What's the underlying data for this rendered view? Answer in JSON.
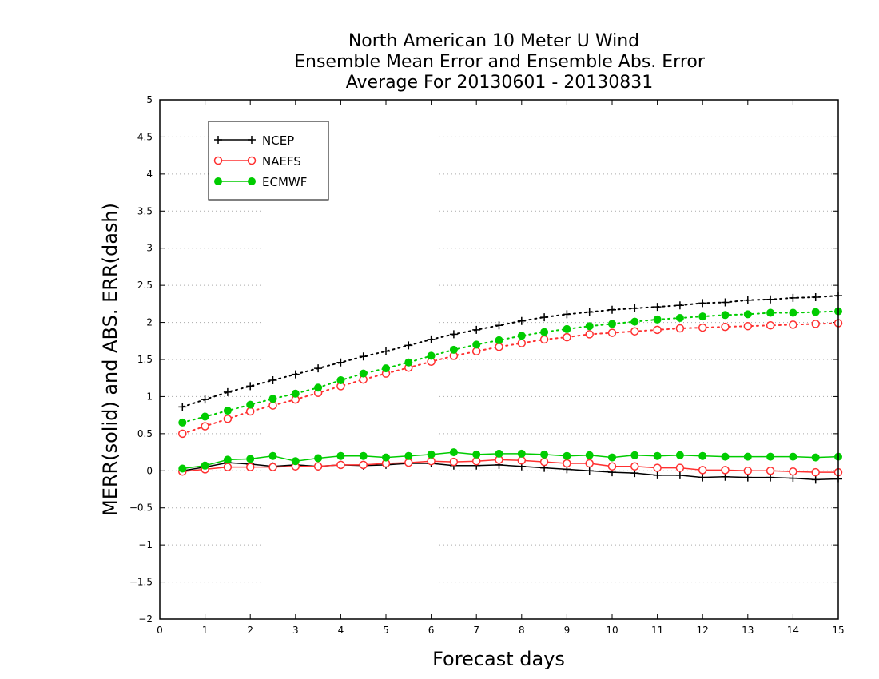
{
  "chart_data": {
    "type": "line",
    "title": [
      "North American 10 Meter U Wind",
      "Ensemble Mean Error and Ensemble Abs. Error",
      "Average For 20130601 - 20130831"
    ],
    "xlabel": "Forecast days",
    "ylabel": "MERR(solid) and ABS. ERR(dash)",
    "xlim": [
      0,
      15
    ],
    "ylim": [
      -2,
      5
    ],
    "x_ticks": [
      "0",
      "1",
      "2",
      "3",
      "4",
      "5",
      "6",
      "7",
      "8",
      "9",
      "10",
      "11",
      "12",
      "13",
      "14",
      "15"
    ],
    "y_ticks": [
      "5",
      "4.5",
      "4",
      "3.5",
      "3",
      "2.5",
      "2",
      "1.5",
      "1",
      "0.5",
      "0",
      "−0.5",
      "−1",
      "−1.5",
      "−2"
    ],
    "grid": "horizontal dotted",
    "legend_position": "top-left",
    "x": [
      0.5,
      1,
      1.5,
      2,
      2.5,
      3,
      3.5,
      4,
      4.5,
      5,
      5.5,
      6,
      6.5,
      7,
      7.5,
      8,
      8.5,
      9,
      9.5,
      10,
      10.5,
      11,
      11.5,
      12,
      12.5,
      13,
      13.5,
      14,
      14.5,
      15
    ],
    "series": [
      {
        "name": "NCEP",
        "color": "#000000",
        "marker": "plus",
        "merr": [
          0.0,
          0.05,
          0.11,
          0.09,
          0.06,
          0.08,
          0.06,
          0.08,
          0.07,
          0.08,
          0.1,
          0.1,
          0.07,
          0.07,
          0.08,
          0.06,
          0.04,
          0.02,
          0.0,
          -0.02,
          -0.03,
          -0.06,
          -0.06,
          -0.09,
          -0.08,
          -0.09,
          -0.09,
          -0.1,
          -0.12,
          -0.11
        ],
        "abs_err": [
          0.86,
          0.96,
          1.06,
          1.14,
          1.22,
          1.3,
          1.38,
          1.46,
          1.54,
          1.61,
          1.69,
          1.77,
          1.84,
          1.9,
          1.96,
          2.02,
          2.07,
          2.11,
          2.14,
          2.17,
          2.19,
          2.21,
          2.23,
          2.26,
          2.27,
          2.3,
          2.31,
          2.33,
          2.34,
          2.36
        ]
      },
      {
        "name": "NAEFS",
        "color": "#ff3030",
        "marker": "open-circle",
        "merr": [
          -0.01,
          0.02,
          0.05,
          0.05,
          0.05,
          0.06,
          0.06,
          0.08,
          0.08,
          0.1,
          0.11,
          0.13,
          0.12,
          0.13,
          0.15,
          0.14,
          0.12,
          0.1,
          0.1,
          0.06,
          0.06,
          0.04,
          0.04,
          0.01,
          0.01,
          0.0,
          0.0,
          -0.01,
          -0.02,
          -0.02
        ],
        "abs_err": [
          0.5,
          0.6,
          0.7,
          0.8,
          0.88,
          0.96,
          1.05,
          1.14,
          1.23,
          1.31,
          1.39,
          1.47,
          1.55,
          1.61,
          1.67,
          1.72,
          1.77,
          1.8,
          1.84,
          1.86,
          1.88,
          1.9,
          1.92,
          1.93,
          1.94,
          1.95,
          1.96,
          1.97,
          1.98,
          1.99
        ]
      },
      {
        "name": "ECMWF",
        "color": "#00cc00",
        "marker": "filled-circle",
        "merr": [
          0.03,
          0.07,
          0.15,
          0.16,
          0.2,
          0.13,
          0.17,
          0.2,
          0.2,
          0.18,
          0.2,
          0.22,
          0.25,
          0.22,
          0.23,
          0.23,
          0.22,
          0.2,
          0.21,
          0.18,
          0.21,
          0.2,
          0.21,
          0.2,
          0.19,
          0.19,
          0.19,
          0.19,
          0.18,
          0.19
        ],
        "abs_err": [
          0.65,
          0.73,
          0.81,
          0.89,
          0.97,
          1.04,
          1.12,
          1.22,
          1.31,
          1.38,
          1.46,
          1.55,
          1.63,
          1.7,
          1.76,
          1.82,
          1.87,
          1.91,
          1.95,
          1.98,
          2.01,
          2.04,
          2.06,
          2.08,
          2.1,
          2.11,
          2.13,
          2.13,
          2.14,
          2.15
        ]
      }
    ]
  }
}
